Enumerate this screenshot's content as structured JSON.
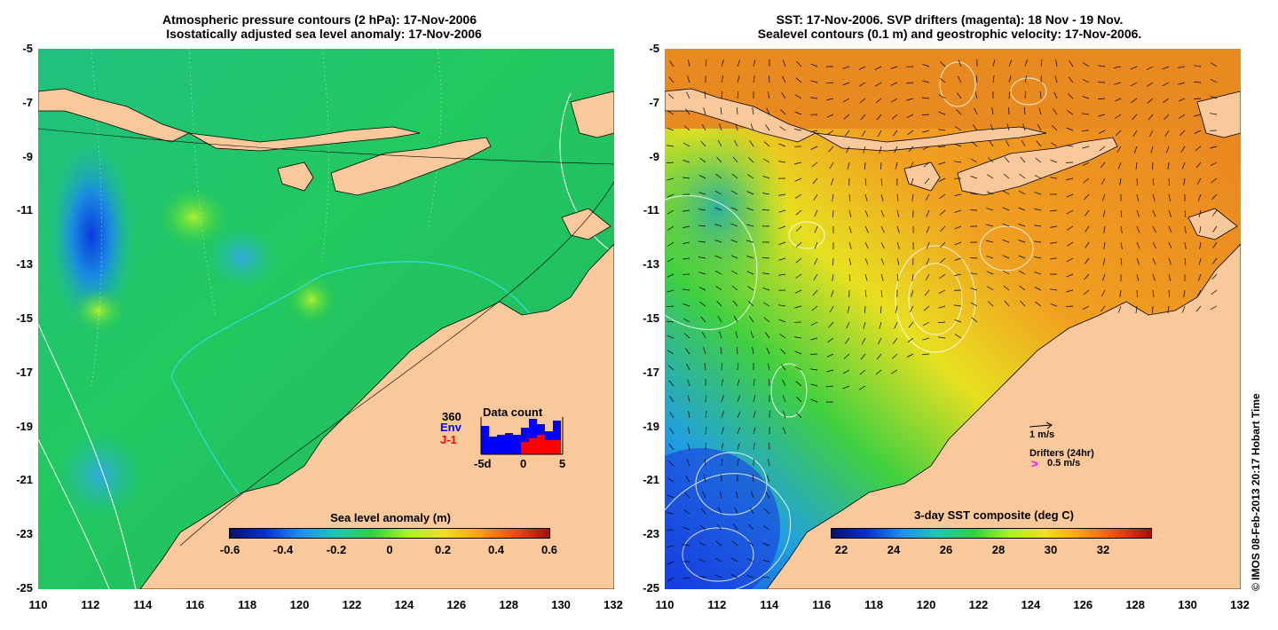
{
  "left_panel": {
    "title_line1": "Atmospheric pressure contours (2 hPa): 17-Nov-2006",
    "title_line2": "Isostatically adjusted sea level anomaly: 17-Nov-2006",
    "colorbar": {
      "title": "Sea level anomaly (m)",
      "ticks": [
        "-0.6",
        "-0.4",
        "-0.2",
        "0",
        "0.2",
        "0.4",
        "0.6"
      ]
    },
    "data_count": {
      "label_count": "360",
      "label_env": "Env",
      "label_j1": "J-1",
      "title": "Data count",
      "axis_ticks": [
        "-5d",
        "0",
        "5"
      ],
      "env_color": "#0000ff",
      "j1_color": "#ff0000"
    }
  },
  "right_panel": {
    "title_line1": "SST: 17-Nov-2006. SVP drifters (magenta): 18 Nov - 19 Nov.",
    "title_line2": "Sealevel contours (0.1 m) and geostrophic velocity: 17-Nov-2006.",
    "colorbar": {
      "title": "3-day SST composite (deg C)",
      "ticks": [
        "22",
        "24",
        "26",
        "28",
        "30",
        "32"
      ]
    },
    "velocity_legend": "1 m/s",
    "drifters_legend": "Drifters (24hr)",
    "drifters_speed": "0.5 m/s",
    "drifter_color": "#ff00ff"
  },
  "axes": {
    "y_ticks": [
      "-5",
      "-7",
      "-9",
      "-11",
      "-13",
      "-15",
      "-17",
      "-19",
      "-21",
      "-23",
      "-25"
    ],
    "x_ticks": [
      "110",
      "112",
      "114",
      "116",
      "118",
      "120",
      "122",
      "124",
      "126",
      "128",
      "130",
      "132"
    ]
  },
  "land_color": "#f9c89b",
  "credit": "© IMOS 08-Feb-2013 20:17 Hobart Time"
}
